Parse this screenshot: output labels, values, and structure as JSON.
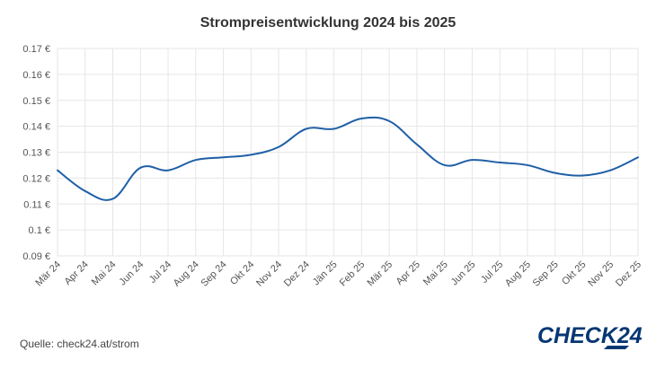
{
  "chart_data": {
    "type": "line",
    "title": "Strompreisentwicklung 2024 bis 2025",
    "xlabel": "",
    "ylabel": "",
    "categories": [
      "Mär 24",
      "Apr 24",
      "Mai 24",
      "Jun 24",
      "Jul 24",
      "Aug 24",
      "Sep 24",
      "Okt 24",
      "Nov 24",
      "Dez 24",
      "Jän 25",
      "Feb 25",
      "Mär 25",
      "Apr 25",
      "Mai 25",
      "Jun 25",
      "Jul 25",
      "Aug 25",
      "Sep 25",
      "Okt 25",
      "Nov 25",
      "Dez 25"
    ],
    "series": [
      {
        "values": [
          0.123,
          0.115,
          0.112,
          0.124,
          0.123,
          0.127,
          0.128,
          0.129,
          0.132,
          0.139,
          0.139,
          0.143,
          0.142,
          0.133,
          0.125,
          0.127,
          0.126,
          0.125,
          0.122,
          0.121,
          0.123,
          0.128
        ],
        "color": "#1f5fa6"
      }
    ],
    "ylim": [
      0.09,
      0.17
    ],
    "yticks": [
      0.09,
      0.1,
      0.11,
      0.12,
      0.13,
      0.14,
      0.15,
      0.16,
      0.17
    ],
    "ytick_labels": [
      "0.09 €",
      "0.1 €",
      "0.11 €",
      "0.12 €",
      "0.13 €",
      "0.14 €",
      "0.15 €",
      "0.16 €",
      "0.17 €"
    ],
    "grid": true,
    "legend": "none"
  },
  "footer": {
    "source": "Quelle: check24.at/strom",
    "logo_text": "CHECK24",
    "logo_color": "#063773"
  },
  "colors": {
    "grid": "#e6e6e6",
    "axis_text": "#555555",
    "line": "#1f5fa6"
  }
}
